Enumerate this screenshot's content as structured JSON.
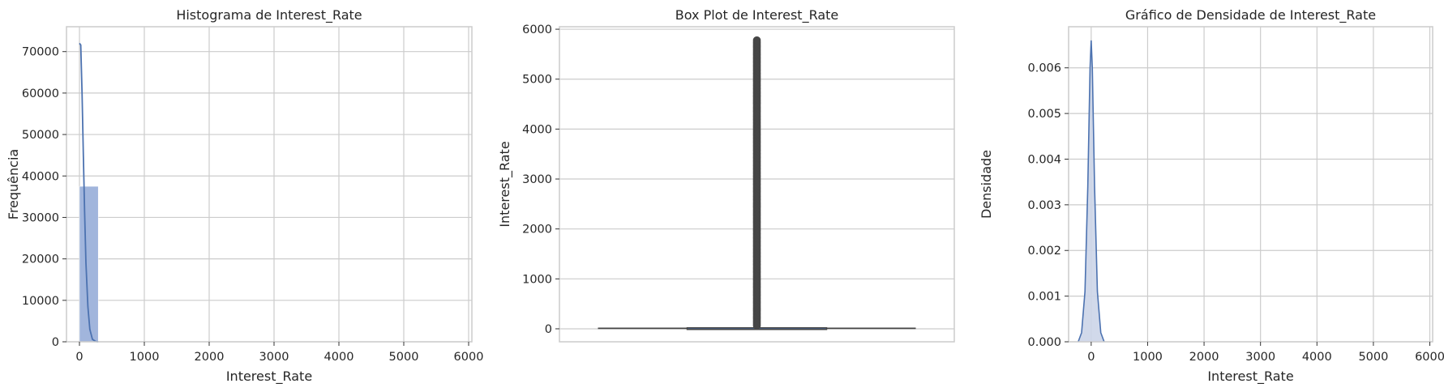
{
  "chart_data": [
    {
      "type": "bar",
      "title": "Histograma de Interest_Rate",
      "xlabel": "Interest_Rate",
      "ylabel": "Frequência",
      "xlim": [
        -200,
        6050
      ],
      "ylim": [
        0,
        76000
      ],
      "xticks": [
        0,
        1000,
        2000,
        3000,
        4000,
        5000,
        6000
      ],
      "yticks": [
        0,
        10000,
        20000,
        30000,
        40000,
        50000,
        60000,
        70000
      ],
      "bins": [
        {
          "x0": 0,
          "x1": 290,
          "count": 37500
        }
      ],
      "kde": {
        "x": [
          0,
          20,
          40,
          60,
          80,
          100,
          130,
          160,
          200,
          250,
          290
        ],
        "y": [
          72000,
          71600,
          60000,
          45000,
          31000,
          19000,
          8500,
          3000,
          600,
          80,
          0
        ]
      },
      "grid": true,
      "colors": {
        "bar": "#a1b5dc",
        "line": "#4c72b0"
      }
    },
    {
      "type": "box",
      "title": "Box Plot de Interest_Rate",
      "ylabel": "Interest_Rate",
      "ylim": [
        -260,
        6050
      ],
      "yticks": [
        0,
        1000,
        2000,
        3000,
        4000,
        5000,
        6000
      ],
      "stats": {
        "whisker_low": 1,
        "q1": 10,
        "median": 14,
        "q3": 20,
        "whisker_high": 34
      },
      "outliers_range": [
        60,
        5790
      ],
      "grid": true,
      "colors": {
        "box": "#4c72b0",
        "outline": "#464646"
      }
    },
    {
      "type": "area",
      "title": "Gráfico de Densidade de Interest_Rate",
      "xlabel": "Interest_Rate",
      "ylabel": "Densidade",
      "xlim": [
        -400,
        6050
      ],
      "ylim": [
        0,
        0.0069
      ],
      "xticks": [
        0,
        1000,
        2000,
        3000,
        4000,
        5000,
        6000
      ],
      "yticks": [
        "0.000",
        "0.001",
        "0.002",
        "0.003",
        "0.004",
        "0.005",
        "0.006"
      ],
      "density": {
        "x": [
          -230,
          -170,
          -110,
          -60,
          -20,
          0,
          20,
          60,
          110,
          170,
          230
        ],
        "y": [
          0,
          0.0002,
          0.0011,
          0.0034,
          0.006,
          0.0066,
          0.006,
          0.0034,
          0.0011,
          0.0002,
          0
        ]
      },
      "grid": true,
      "colors": {
        "line": "#4c72b0",
        "fill": "#ccd5e8"
      }
    }
  ]
}
